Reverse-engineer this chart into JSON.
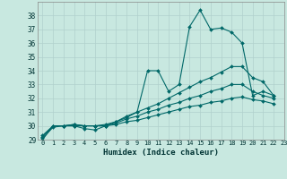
{
  "xlabel": "Humidex (Indice chaleur)",
  "background_color": "#c8e8e0",
  "grid_color": "#b0d0cc",
  "line_color": "#006868",
  "xlim": [
    -0.5,
    23
  ],
  "ylim": [
    29,
    39
  ],
  "yticks": [
    29,
    30,
    31,
    32,
    33,
    34,
    35,
    36,
    37,
    38
  ],
  "xticks": [
    0,
    1,
    2,
    3,
    4,
    5,
    6,
    7,
    8,
    9,
    10,
    11,
    12,
    13,
    14,
    15,
    16,
    17,
    18,
    19,
    20,
    21,
    22,
    23
  ],
  "series": [
    [
      29.0,
      30.0,
      30.0,
      30.0,
      29.8,
      29.7,
      30.0,
      30.3,
      30.6,
      31.0,
      34.0,
      34.0,
      32.5,
      33.0,
      37.2,
      38.4,
      37.0,
      37.1,
      36.8,
      36.0,
      32.2,
      32.5,
      32.2
    ],
    [
      29.3,
      30.0,
      30.0,
      30.1,
      30.0,
      30.0,
      30.1,
      30.3,
      30.7,
      31.0,
      31.3,
      31.6,
      32.0,
      32.4,
      32.8,
      33.2,
      33.5,
      33.9,
      34.3,
      34.3,
      33.5,
      33.2,
      32.2
    ],
    [
      29.2,
      30.0,
      30.0,
      30.1,
      30.0,
      30.0,
      30.0,
      30.2,
      30.5,
      30.7,
      31.0,
      31.2,
      31.5,
      31.7,
      32.0,
      32.2,
      32.5,
      32.7,
      33.0,
      33.0,
      32.5,
      32.2,
      32.0
    ],
    [
      29.1,
      29.9,
      30.0,
      30.0,
      30.0,
      30.0,
      30.0,
      30.1,
      30.3,
      30.4,
      30.6,
      30.8,
      31.0,
      31.2,
      31.4,
      31.5,
      31.7,
      31.8,
      32.0,
      32.1,
      31.9,
      31.8,
      31.6
    ]
  ]
}
